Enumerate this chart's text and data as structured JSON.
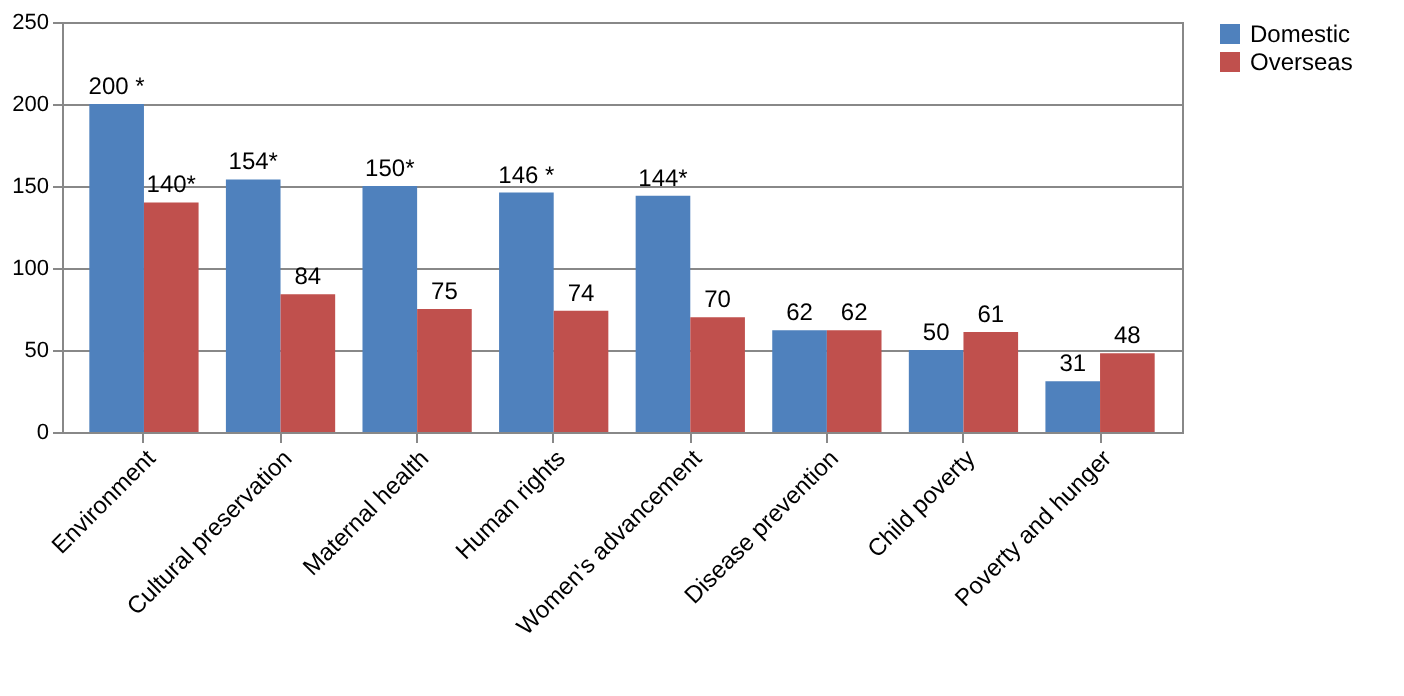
{
  "chart_data": {
    "type": "bar",
    "categories": [
      "Environment",
      "Cultural preservation",
      "Maternal health",
      "Human rights",
      "Women's advancement",
      "Disease prevention",
      "Child poverty",
      "Poverty and hunger"
    ],
    "series": [
      {
        "name": "Domestic",
        "color": "#4f81bd",
        "values": [
          200,
          154,
          150,
          146,
          144,
          62,
          50,
          31
        ],
        "value_labels": [
          "200 *",
          "154*",
          "150*",
          "146 *",
          "144*",
          "62",
          "50",
          "31"
        ]
      },
      {
        "name": "Overseas",
        "color": "#c0504d",
        "values": [
          140,
          84,
          75,
          74,
          70,
          62,
          61,
          48
        ],
        "value_labels": [
          "140*",
          "84",
          "75",
          "74",
          "70",
          "62",
          "61",
          "48"
        ]
      }
    ],
    "ylim": [
      0,
      250
    ],
    "yticks": [
      0,
      50,
      100,
      150,
      200,
      250
    ],
    "grid": "y",
    "legend": "right"
  }
}
